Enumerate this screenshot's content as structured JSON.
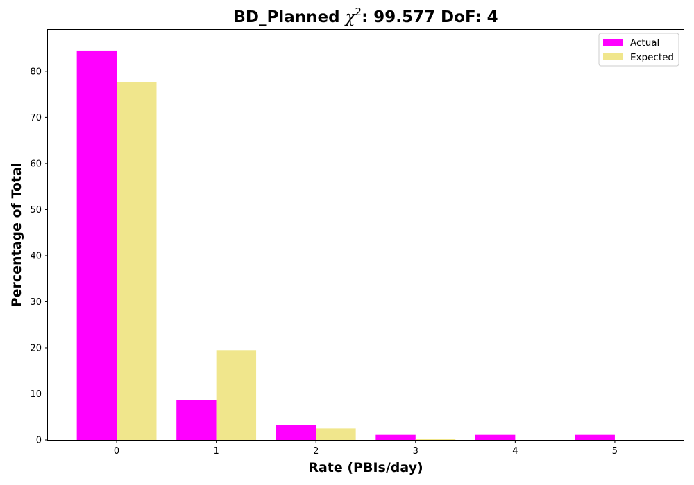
{
  "chart_data": {
    "type": "bar",
    "title": {
      "prefix": "BD_Planned ",
      "chi": "χ",
      "exponent": "2",
      "suffix": ": 99.577 DoF: 4"
    },
    "xlabel": "Rate (PBIs/day)",
    "ylabel": "Percentage of Total",
    "categories": [
      "0",
      "1",
      "2",
      "3",
      "4",
      "5"
    ],
    "x": [
      0,
      1,
      2,
      3,
      4,
      5
    ],
    "xlim": [
      -0.69,
      5.69
    ],
    "ylim": [
      0,
      89
    ],
    "yticks": [
      0,
      10,
      20,
      30,
      40,
      50,
      60,
      70,
      80
    ],
    "grid": false,
    "legend_position": "top-right",
    "series": [
      {
        "name": "Actual",
        "color": "#ff00ff",
        "values": [
          84.5,
          8.7,
          3.2,
          1.1,
          1.1,
          1.1
        ]
      },
      {
        "name": "Expected",
        "color": "#f0e68c",
        "values": [
          77.7,
          19.5,
          2.5,
          0.3,
          0.0,
          0.0
        ]
      }
    ]
  }
}
